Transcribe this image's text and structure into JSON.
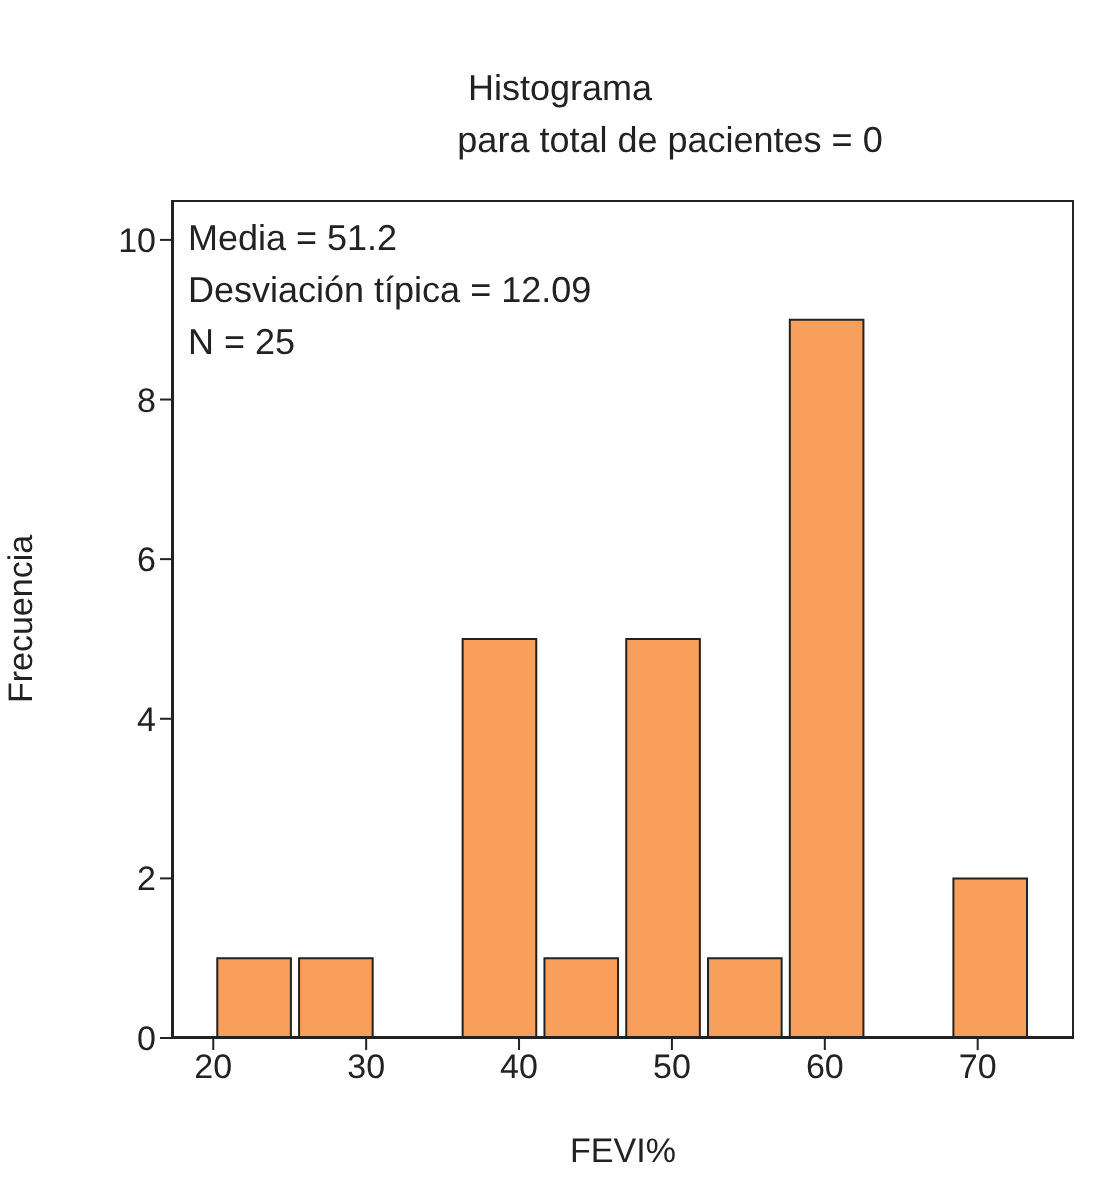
{
  "chart_data": {
    "type": "histogram",
    "title": "Histograma",
    "subtitle": "para total de pacientes = 0",
    "xlabel": "FEVI%",
    "ylabel": "Frecuencia",
    "bins": [
      20,
      25.35,
      30.7,
      36.05,
      41.4,
      46.75,
      52.1,
      57.45,
      62.8,
      68.15,
      73.5
    ],
    "values": [
      1,
      1,
      0,
      5,
      1,
      5,
      1,
      9,
      0,
      2
    ],
    "color": "#f79f5b",
    "xlim": [
      17.3,
      76.3
    ],
    "xticks": [
      20,
      30,
      40,
      50,
      60,
      70
    ],
    "ylim": [
      0,
      10.5
    ],
    "yticks": [
      0,
      2,
      4,
      6,
      8,
      10
    ],
    "annotations": [
      "Media = 51.2",
      "Desviación típica = 12.09",
      "N = 25"
    ],
    "grid": false
  }
}
